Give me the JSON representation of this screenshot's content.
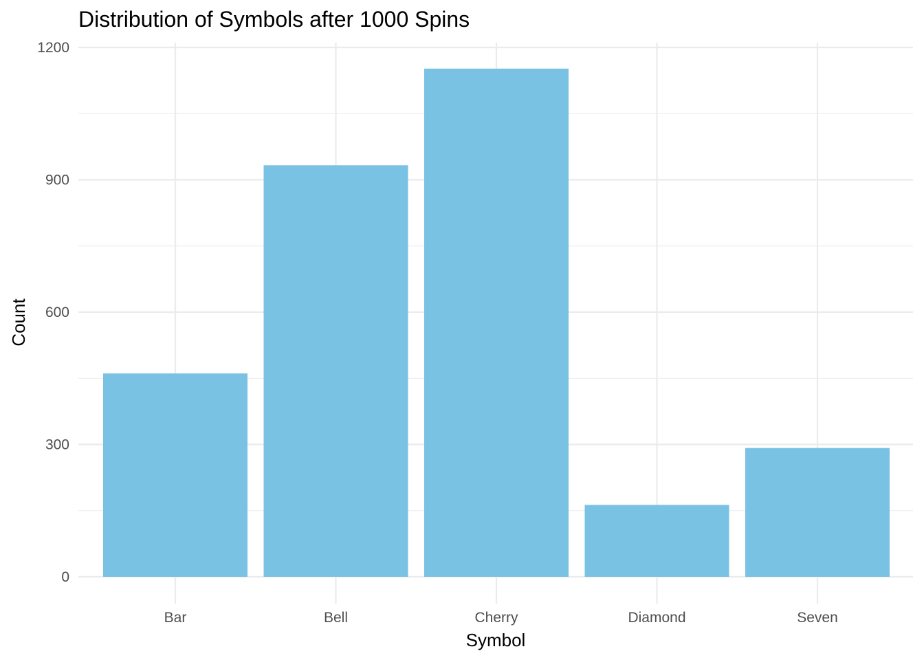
{
  "chart_data": {
    "type": "bar",
    "title": "Distribution of Symbols after 1000 Spins",
    "xlabel": "Symbol",
    "ylabel": "Count",
    "categories": [
      "Bar",
      "Bell",
      "Cherry",
      "Diamond",
      "Seven"
    ],
    "values": [
      461,
      933,
      1152,
      163,
      292
    ],
    "ylim": [
      0,
      1200
    ],
    "yticks": [
      0,
      300,
      600,
      900,
      1200
    ],
    "ytick_labels": [
      "0",
      "300",
      "600",
      "900",
      "1200"
    ],
    "grid": true,
    "legend": "none",
    "bar_color": "#7AC2E4",
    "grid_color": "#EBEBEB"
  }
}
